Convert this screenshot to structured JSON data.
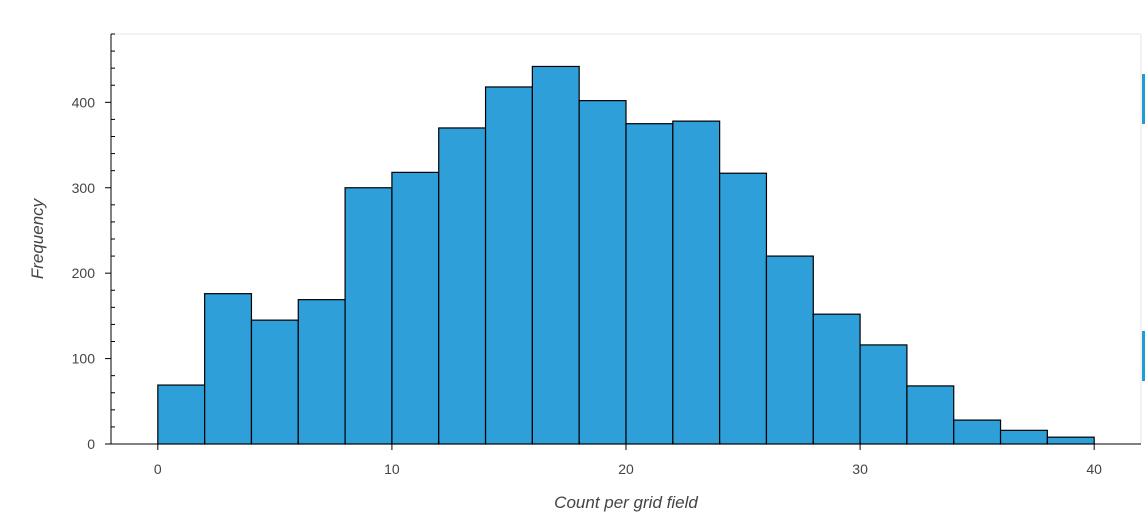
{
  "chart_data": {
    "type": "bar",
    "subtype": "histogram",
    "bin_edges": [
      0,
      2,
      4,
      6,
      8,
      10,
      12,
      14,
      16,
      18,
      20,
      22,
      24,
      26,
      28,
      30,
      32,
      34,
      36,
      38,
      40
    ],
    "values": [
      69,
      176,
      145,
      169,
      300,
      318,
      370,
      418,
      442,
      402,
      375,
      378,
      317,
      220,
      152,
      116,
      68,
      28,
      16,
      8
    ],
    "title": "",
    "xlabel": "Count per grid field",
    "ylabel": "Frequency",
    "xlim": [
      -2,
      42
    ],
    "ylim": [
      0,
      480
    ],
    "xticks": [
      0,
      10,
      20,
      30,
      40
    ],
    "yticks": [
      0,
      100,
      200,
      300,
      400
    ],
    "xtick_labels": [
      "0",
      "10",
      "20",
      "30",
      "40"
    ],
    "ytick_labels": [
      "0",
      "100",
      "200",
      "300",
      "400"
    ],
    "bar_color": "#2e9fd9",
    "bar_edge_color": "#000000",
    "grid": false,
    "legend": "none"
  }
}
